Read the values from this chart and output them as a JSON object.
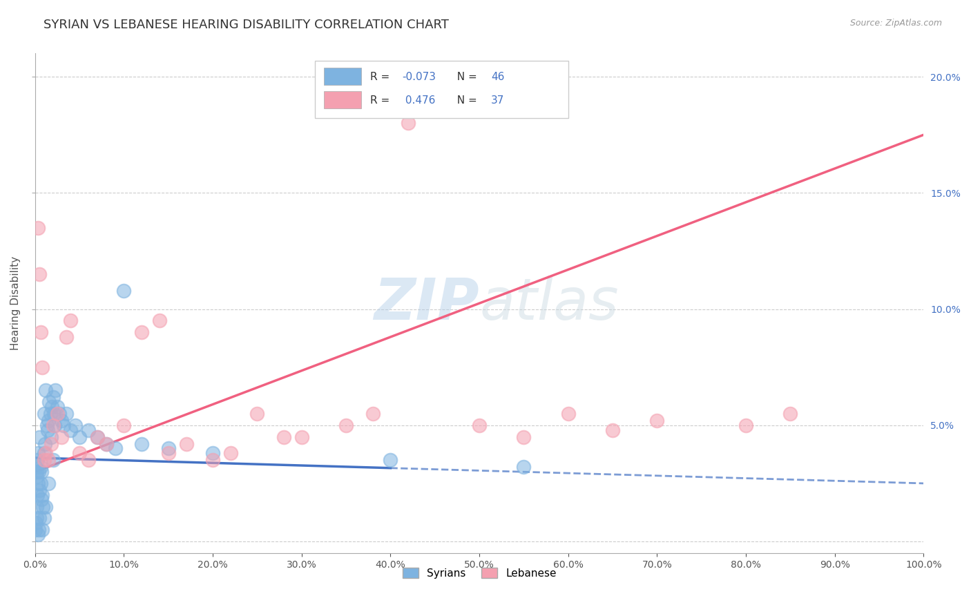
{
  "title": "SYRIAN VS LEBANESE HEARING DISABILITY CORRELATION CHART",
  "source": "Source: ZipAtlas.com",
  "ylabel": "Hearing Disability",
  "xlim": [
    0,
    100
  ],
  "ylim": [
    -0.5,
    21
  ],
  "yticks": [
    0,
    5,
    10,
    15,
    20
  ],
  "ytick_labels": [
    "",
    "5.0%",
    "10.0%",
    "15.0%",
    "20.0%"
  ],
  "xtick_vals": [
    0,
    10,
    20,
    30,
    40,
    50,
    60,
    70,
    80,
    90,
    100
  ],
  "xtick_labels": [
    "0.0%",
    "10.0%",
    "20.0%",
    "30.0%",
    "40.0%",
    "50.0%",
    "60.0%",
    "70.0%",
    "80.0%",
    "90.0%",
    "100.0%"
  ],
  "syrians_R": -0.073,
  "syrians_N": 46,
  "lebanese_R": 0.476,
  "lebanese_N": 37,
  "syrian_color": "#7eb3e0",
  "lebanese_color": "#f4a0b0",
  "syrian_line_color": "#4472C4",
  "lebanese_line_color": "#F06080",
  "background_color": "#ffffff",
  "grid_color": "#cccccc",
  "title_color": "#333333",
  "watermark": "ZIPatlas",
  "syrians_x": [
    0.1,
    0.15,
    0.2,
    0.25,
    0.3,
    0.35,
    0.4,
    0.5,
    0.5,
    0.6,
    0.7,
    0.8,
    0.9,
    1.0,
    1.0,
    1.1,
    1.2,
    1.3,
    1.4,
    1.5,
    1.6,
    1.7,
    1.8,
    1.9,
    2.0,
    2.1,
    2.2,
    2.3,
    2.5,
    2.7,
    3.0,
    3.2,
    3.5,
    4.0,
    4.5,
    5.0,
    6.0,
    7.0,
    8.0,
    9.0,
    10.0,
    12.0,
    15.0,
    20.0,
    40.0,
    55.0
  ],
  "syrians_y": [
    3.2,
    2.8,
    3.0,
    3.5,
    2.5,
    3.8,
    3.0,
    2.2,
    4.5,
    3.2,
    1.8,
    2.0,
    1.5,
    5.5,
    3.8,
    4.2,
    6.5,
    5.0,
    4.8,
    5.2,
    6.0,
    5.5,
    4.5,
    5.8,
    6.2,
    5.5,
    5.0,
    6.5,
    5.8,
    5.5,
    5.2,
    5.0,
    5.5,
    4.8,
    5.0,
    4.5,
    4.8,
    4.5,
    4.2,
    4.0,
    10.8,
    4.2,
    4.0,
    3.8,
    3.5,
    3.2
  ],
  "syrians_y_extra": [
    0.5,
    0.8,
    1.0,
    1.5,
    2.0,
    0.3,
    0.5,
    1.0,
    2.5,
    3.0,
    0.5,
    1.0,
    1.5,
    2.5,
    3.5
  ],
  "lebanese_x": [
    0.3,
    0.5,
    0.6,
    0.8,
    1.0,
    1.2,
    1.5,
    1.8,
    2.0,
    2.5,
    3.0,
    3.5,
    4.0,
    5.0,
    6.0,
    7.0,
    8.0,
    10.0,
    12.0,
    14.0,
    15.0,
    17.0,
    20.0,
    22.0,
    25.0,
    28.0,
    30.0,
    35.0,
    38.0,
    42.0,
    50.0,
    55.0,
    60.0,
    65.0,
    70.0,
    80.0,
    85.0
  ],
  "lebanese_y": [
    13.5,
    11.5,
    9.0,
    7.5,
    3.5,
    3.8,
    3.5,
    4.2,
    5.0,
    5.5,
    4.5,
    8.8,
    9.5,
    3.8,
    3.5,
    4.5,
    4.2,
    5.0,
    9.0,
    9.5,
    3.8,
    4.2,
    3.5,
    3.8,
    5.5,
    4.5,
    4.5,
    5.0,
    5.5,
    18.0,
    5.0,
    4.5,
    5.5,
    4.8,
    5.2,
    5.0,
    5.5
  ]
}
